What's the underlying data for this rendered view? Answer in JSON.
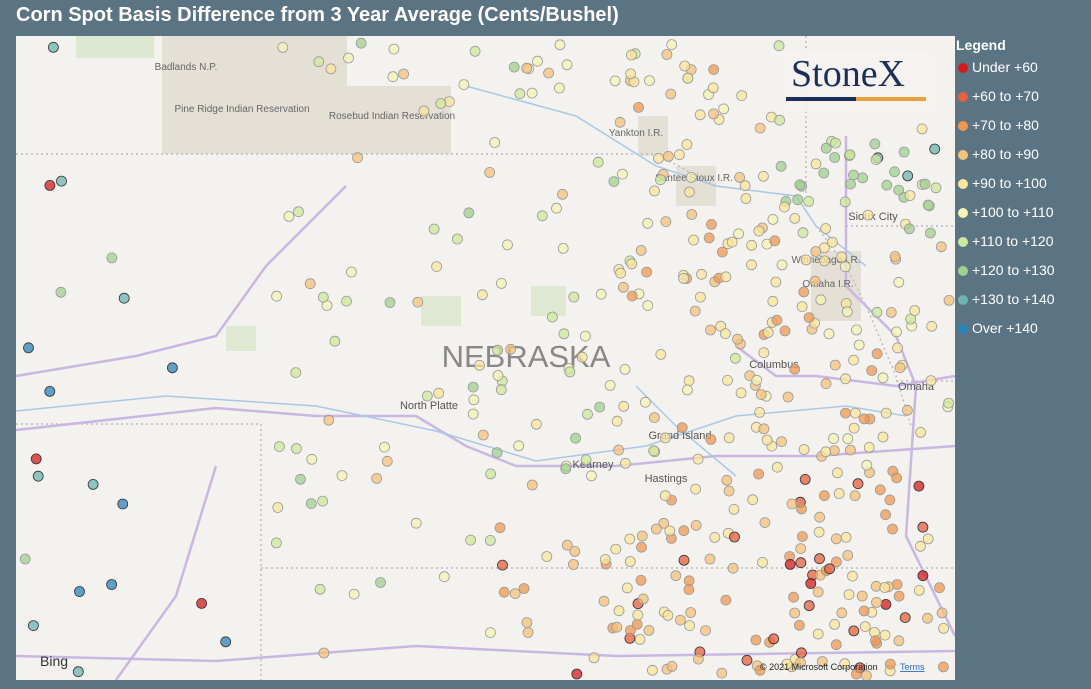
{
  "header": {
    "title": "Corn Spot Basis Difference from 3 Year Average (Cents/Bushel)"
  },
  "legend": {
    "title": "Legend",
    "items": [
      {
        "label": "Under +60",
        "color": "#d7191c"
      },
      {
        "label": "+60 to +70",
        "color": "#e8603c"
      },
      {
        "label": "+70 to +80",
        "color": "#f0974d"
      },
      {
        "label": "+80 to +90",
        "color": "#f6c27a"
      },
      {
        "label": "+90 to +100",
        "color": "#fbe59a"
      },
      {
        "label": "+100 to +110",
        "color": "#f4f3b2"
      },
      {
        "label": "+110 to +120",
        "color": "#cfe89a"
      },
      {
        "label": "+120 to +130",
        "color": "#9fd08d"
      },
      {
        "label": "+130 to +140",
        "color": "#6db3b0"
      },
      {
        "label": "Over +140",
        "color": "#2b83ba"
      }
    ]
  },
  "map": {
    "labels": [
      "Badlands N.P.",
      "Pine Ridge Indian Reservation",
      "Rosebud Indian Reservation",
      "Yankton I.R.",
      "Santee Sioux I.R.",
      "Sioux City",
      "Winnebago I.R.",
      "Omaha I.R.",
      "NEBRASKA",
      "North Platte",
      "Columbus",
      "Grand Island",
      "Kearney",
      "Hastings",
      "Omaha"
    ],
    "logo": "StoneX",
    "provider": "Bing",
    "copyright": "© 2021 Microsoft Corporation",
    "terms": "Terms"
  }
}
